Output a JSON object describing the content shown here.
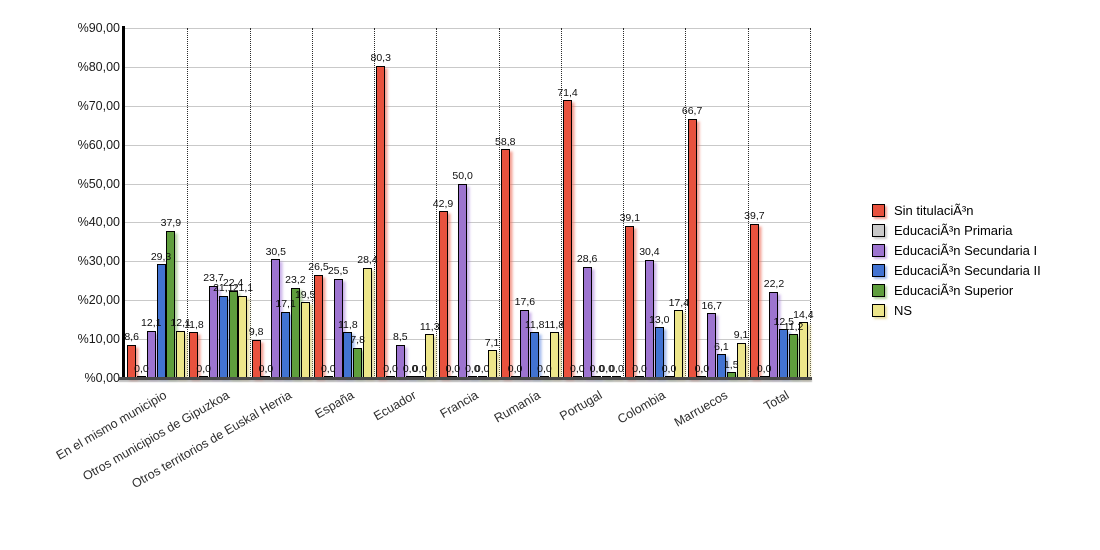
{
  "chart_data": {
    "type": "bar",
    "title": "",
    "xlabel": "",
    "ylabel": "",
    "ylim": [
      0,
      90
    ],
    "ytick_step": 10,
    "ytick_labels": [
      "%90,00",
      "%80,00",
      "%70,00",
      "%60,00",
      "%50,00",
      "%40,00",
      "%30,00",
      "%20,00",
      "%10,00",
      "%0,00"
    ],
    "grid": "horizontal-solid, dotted vertical group separators",
    "legend_position": "right",
    "categories": [
      "En el mismo municipio",
      "Otros municipios de Gipuzkoa",
      "Otros territorios de Euskal Herria",
      "España",
      "Ecuador",
      "Francia",
      "Rumanía",
      "Portugal",
      "Colombia",
      "Marruecos",
      "Total"
    ],
    "series": [
      {
        "name": "Sin titulaciÃ³n",
        "color": "#e8523e",
        "shadow": "rgba(238,110,90,0.65)",
        "values": [
          8.6,
          11.8,
          9.8,
          26.5,
          80.3,
          42.9,
          58.8,
          71.4,
          39.1,
          66.7,
          39.7
        ],
        "labels": [
          "8,6",
          "11,8",
          "9,8",
          "26,5",
          "80,3",
          "42,9",
          "58,8",
          "71,4",
          "39,1",
          "66,7",
          "39,7"
        ]
      },
      {
        "name": "EducaciÃ³n Primaria",
        "color": "#c9c9c9",
        "shadow": "rgba(170,170,170,0.6)",
        "values": [
          0,
          0,
          0,
          0,
          0,
          0,
          0,
          0,
          0,
          0,
          0
        ],
        "labels": [
          "0,0",
          "0,0",
          "0,0",
          "0,0",
          "0,0",
          "0,0",
          "0,0",
          "0,0",
          "0,0",
          "0,0",
          "0,0"
        ]
      },
      {
        "name": "EducaciÃ³n Secundaria I",
        "color": "#9d74d0",
        "shadow": "rgba(170,130,220,0.6)",
        "values": [
          12.1,
          23.7,
          30.5,
          25.5,
          8.5,
          50.0,
          17.6,
          28.6,
          30.4,
          16.7,
          22.2
        ],
        "labels": [
          "12,1",
          "23,7",
          "30,5",
          "25,5",
          "8,5",
          "50,0",
          "17,6",
          "28,6",
          "30,4",
          "16,7",
          "22,2"
        ]
      },
      {
        "name": "EducaciÃ³n Secundaria II",
        "color": "#4273d2",
        "shadow": "rgba(100,140,225,0.6)",
        "values": [
          29.3,
          21.1,
          17.1,
          11.8,
          0,
          0,
          11.8,
          0,
          13.0,
          6.1,
          12.5
        ],
        "labels": [
          "29,3",
          "21,1",
          "17,1",
          "11,8",
          "0,0",
          "0,0",
          "11,8",
          "0,0",
          "13,0",
          "6,1",
          "12,5"
        ]
      },
      {
        "name": "EducaciÃ³n Superior",
        "color": "#5f9e3d",
        "shadow": "rgba(130,180,100,0.6)",
        "values": [
          37.9,
          22.4,
          23.2,
          7.8,
          0,
          0,
          0,
          0,
          0,
          1.5,
          11.2
        ],
        "labels": [
          "37,9",
          "22,4",
          "23,2",
          "7,8",
          "0,0",
          "0,0",
          "0,0",
          "0,0",
          "0,0",
          "1,5",
          "11,2"
        ]
      },
      {
        "name": "NS",
        "color": "#ede68a",
        "shadow": "rgba(220,210,130,0.7)",
        "values": [
          12.1,
          21.1,
          19.5,
          28.4,
          11.3,
          7.1,
          11.8,
          0,
          17.4,
          9.1,
          14.4
        ],
        "labels": [
          "12,1",
          "21,1",
          "19,5",
          "28,4",
          "11,3",
          "7,1",
          "11,8",
          "0,0",
          "17,4",
          "9,1",
          "14,4"
        ]
      }
    ]
  }
}
